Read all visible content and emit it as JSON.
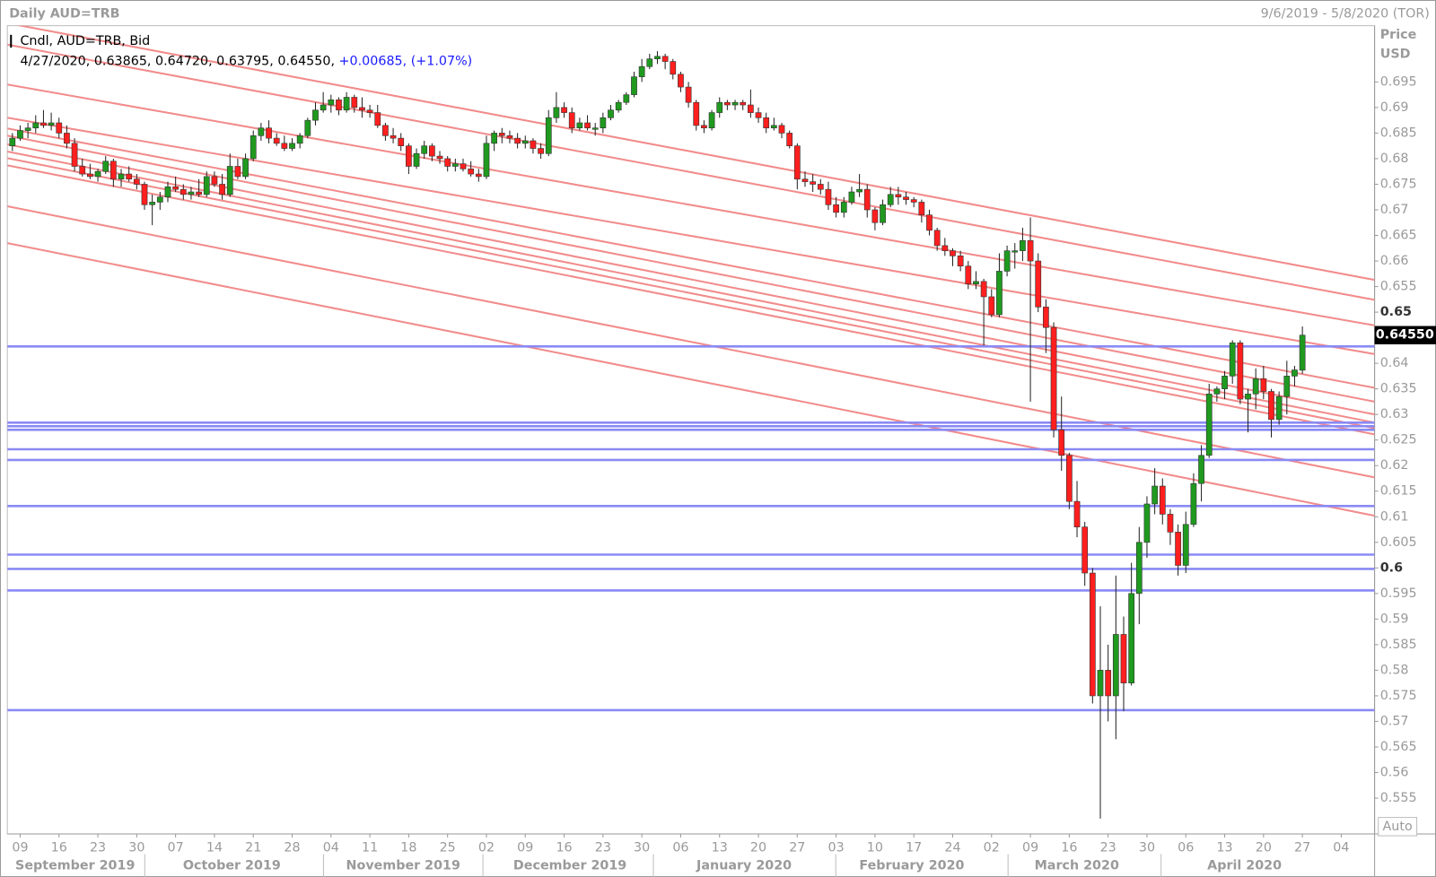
{
  "chart_data": {
    "type": "candlestick",
    "title": "Daily AUD=TRB",
    "range_label": "9/6/2019 - 5/8/2020 (TOR)",
    "axis_title": "Price",
    "axis_unit": "USD",
    "auto_label": "Auto",
    "legend_title": "Cndl, AUD=TRB, Bid",
    "legend_ohlc": "4/27/2020, 0.63865, 0.64720, 0.63795, 0.64550,",
    "legend_change": "+0.00685, (+1.07%)",
    "last_price": {
      "value": 0.6455,
      "label": "0.64550"
    },
    "up_color": "#1f9a1f",
    "down_color": "#ff1f1f",
    "level_color": "#8a8af5",
    "trend_color": "#f28b8b",
    "ylim": [
      0.548,
      0.706
    ],
    "yticks": [
      0.695,
      0.69,
      0.685,
      0.68,
      0.675,
      0.67,
      0.665,
      0.66,
      0.655,
      0.65,
      0.64,
      0.635,
      0.63,
      0.625,
      0.62,
      0.615,
      0.61,
      0.605,
      0.6,
      0.595,
      0.59,
      0.585,
      0.58,
      0.575,
      0.57,
      0.565,
      0.56,
      0.555
    ],
    "xticks": [
      "09",
      "16",
      "23",
      "30",
      "07",
      "14",
      "21",
      "28",
      "04",
      "11",
      "18",
      "25",
      "02",
      "09",
      "16",
      "23",
      "30",
      "06",
      "13",
      "20",
      "27",
      "03",
      "10",
      "17",
      "24",
      "02",
      "09",
      "16",
      "23",
      "30",
      "06",
      "13",
      "20",
      "27",
      "04"
    ],
    "months": [
      "September 2019",
      "October 2019",
      "November 2019",
      "December 2019",
      "January 2020",
      "February 2020",
      "March 2020",
      "April 2020"
    ],
    "levels": [
      0.6433,
      0.6284,
      0.6277,
      0.627,
      0.6232,
      0.6211,
      0.6121,
      0.6026,
      0.5998,
      0.5956,
      0.5722
    ],
    "trend_lines": [
      {
        "start": 0.7065,
        "end": 0.6563
      },
      {
        "start": 0.7023,
        "end": 0.6524
      },
      {
        "start": 0.6945,
        "end": 0.6474
      },
      {
        "start": 0.688,
        "end": 0.6418
      },
      {
        "start": 0.6859,
        "end": 0.6352
      },
      {
        "start": 0.6845,
        "end": 0.6325
      },
      {
        "start": 0.6828,
        "end": 0.63
      },
      {
        "start": 0.6814,
        "end": 0.6284
      },
      {
        "start": 0.6801,
        "end": 0.6273
      },
      {
        "start": 0.6787,
        "end": 0.6261
      },
      {
        "start": 0.6707,
        "end": 0.6177
      },
      {
        "start": 0.6635,
        "end": 0.6102
      }
    ],
    "ohlc": [
      [
        0.6825,
        0.685,
        0.6815,
        0.684
      ],
      [
        0.684,
        0.6865,
        0.6835,
        0.6855
      ],
      [
        0.6855,
        0.687,
        0.684,
        0.686
      ],
      [
        0.686,
        0.6885,
        0.685,
        0.687
      ],
      [
        0.687,
        0.6895,
        0.686,
        0.6865
      ],
      [
        0.6865,
        0.689,
        0.6855,
        0.687
      ],
      [
        0.687,
        0.688,
        0.684,
        0.685
      ],
      [
        0.685,
        0.6865,
        0.682,
        0.683
      ],
      [
        0.683,
        0.684,
        0.6775,
        0.6785
      ],
      [
        0.6785,
        0.68,
        0.6765,
        0.677
      ],
      [
        0.677,
        0.679,
        0.676,
        0.6765
      ],
      [
        0.6765,
        0.678,
        0.6755,
        0.6775
      ],
      [
        0.6775,
        0.6805,
        0.677,
        0.6795
      ],
      [
        0.6795,
        0.68,
        0.6745,
        0.676
      ],
      [
        0.676,
        0.678,
        0.6745,
        0.677
      ],
      [
        0.677,
        0.6785,
        0.6755,
        0.676
      ],
      [
        0.676,
        0.677,
        0.674,
        0.675
      ],
      [
        0.675,
        0.6755,
        0.67,
        0.671
      ],
      [
        0.671,
        0.673,
        0.667,
        0.6715
      ],
      [
        0.6715,
        0.6735,
        0.67,
        0.6725
      ],
      [
        0.6725,
        0.6755,
        0.6715,
        0.6745
      ],
      [
        0.6745,
        0.6765,
        0.6735,
        0.674
      ],
      [
        0.674,
        0.675,
        0.672,
        0.673
      ],
      [
        0.673,
        0.6745,
        0.672,
        0.6735
      ],
      [
        0.6735,
        0.676,
        0.6725,
        0.673
      ],
      [
        0.673,
        0.6775,
        0.6725,
        0.6765
      ],
      [
        0.6765,
        0.6775,
        0.6745,
        0.675
      ],
      [
        0.675,
        0.677,
        0.672,
        0.673
      ],
      [
        0.673,
        0.681,
        0.6725,
        0.6785
      ],
      [
        0.6785,
        0.68,
        0.676,
        0.6765
      ],
      [
        0.6765,
        0.681,
        0.676,
        0.68
      ],
      [
        0.68,
        0.6855,
        0.6795,
        0.6845
      ],
      [
        0.6845,
        0.687,
        0.6835,
        0.686
      ],
      [
        0.686,
        0.6875,
        0.683,
        0.684
      ],
      [
        0.684,
        0.685,
        0.6825,
        0.683
      ],
      [
        0.683,
        0.6845,
        0.6815,
        0.682
      ],
      [
        0.682,
        0.684,
        0.6815,
        0.683
      ],
      [
        0.683,
        0.685,
        0.682,
        0.6845
      ],
      [
        0.6845,
        0.688,
        0.684,
        0.6875
      ],
      [
        0.6875,
        0.691,
        0.6865,
        0.6895
      ],
      [
        0.6895,
        0.693,
        0.689,
        0.6905
      ],
      [
        0.6905,
        0.6925,
        0.689,
        0.6915
      ],
      [
        0.6915,
        0.692,
        0.6885,
        0.6895
      ],
      [
        0.6895,
        0.693,
        0.689,
        0.692
      ],
      [
        0.692,
        0.6925,
        0.689,
        0.69
      ],
      [
        0.69,
        0.692,
        0.688,
        0.6895
      ],
      [
        0.6895,
        0.6905,
        0.688,
        0.689
      ],
      [
        0.689,
        0.6905,
        0.686,
        0.6865
      ],
      [
        0.6865,
        0.687,
        0.6835,
        0.6845
      ],
      [
        0.6845,
        0.686,
        0.683,
        0.684
      ],
      [
        0.684,
        0.685,
        0.6815,
        0.6825
      ],
      [
        0.6825,
        0.683,
        0.677,
        0.6785
      ],
      [
        0.6785,
        0.682,
        0.678,
        0.681
      ],
      [
        0.681,
        0.6835,
        0.68,
        0.6825
      ],
      [
        0.6825,
        0.683,
        0.6795,
        0.6805
      ],
      [
        0.6805,
        0.6815,
        0.679,
        0.68
      ],
      [
        0.68,
        0.6805,
        0.6775,
        0.6785
      ],
      [
        0.6785,
        0.68,
        0.6775,
        0.679
      ],
      [
        0.679,
        0.68,
        0.6775,
        0.678
      ],
      [
        0.678,
        0.6795,
        0.6765,
        0.677
      ],
      [
        0.677,
        0.678,
        0.6755,
        0.6765
      ],
      [
        0.6765,
        0.6845,
        0.676,
        0.683
      ],
      [
        0.683,
        0.6855,
        0.6815,
        0.685
      ],
      [
        0.685,
        0.686,
        0.683,
        0.6845
      ],
      [
        0.6845,
        0.6855,
        0.683,
        0.684
      ],
      [
        0.684,
        0.685,
        0.682,
        0.683
      ],
      [
        0.683,
        0.6845,
        0.682,
        0.6835
      ],
      [
        0.6835,
        0.684,
        0.681,
        0.682
      ],
      [
        0.682,
        0.683,
        0.68,
        0.681
      ],
      [
        0.681,
        0.6895,
        0.6805,
        0.688
      ],
      [
        0.688,
        0.693,
        0.687,
        0.69
      ],
      [
        0.69,
        0.691,
        0.688,
        0.689
      ],
      [
        0.689,
        0.69,
        0.685,
        0.686
      ],
      [
        0.686,
        0.688,
        0.6855,
        0.687
      ],
      [
        0.687,
        0.6885,
        0.6855,
        0.686
      ],
      [
        0.686,
        0.687,
        0.6845,
        0.686
      ],
      [
        0.686,
        0.689,
        0.685,
        0.688
      ],
      [
        0.688,
        0.6905,
        0.6875,
        0.6895
      ],
      [
        0.6895,
        0.6915,
        0.689,
        0.691
      ],
      [
        0.691,
        0.693,
        0.6905,
        0.6925
      ],
      [
        0.6925,
        0.697,
        0.692,
        0.696
      ],
      [
        0.696,
        0.6995,
        0.695,
        0.698
      ],
      [
        0.698,
        0.7005,
        0.6975,
        0.6995
      ],
      [
        0.6995,
        0.701,
        0.6985,
        0.7
      ],
      [
        0.7,
        0.7005,
        0.6975,
        0.699
      ],
      [
        0.699,
        0.6995,
        0.6955,
        0.6965
      ],
      [
        0.6965,
        0.697,
        0.693,
        0.694
      ],
      [
        0.694,
        0.695,
        0.69,
        0.691
      ],
      [
        0.691,
        0.6915,
        0.6855,
        0.6865
      ],
      [
        0.6865,
        0.6875,
        0.685,
        0.686
      ],
      [
        0.686,
        0.6895,
        0.6855,
        0.689
      ],
      [
        0.689,
        0.692,
        0.688,
        0.691
      ],
      [
        0.691,
        0.6915,
        0.6895,
        0.6905
      ],
      [
        0.6905,
        0.6915,
        0.6895,
        0.691
      ],
      [
        0.691,
        0.6915,
        0.6895,
        0.6905
      ],
      [
        0.6905,
        0.6935,
        0.688,
        0.689
      ],
      [
        0.689,
        0.69,
        0.687,
        0.688
      ],
      [
        0.688,
        0.689,
        0.685,
        0.686
      ],
      [
        0.686,
        0.688,
        0.6855,
        0.6865
      ],
      [
        0.6865,
        0.687,
        0.684,
        0.685
      ],
      [
        0.685,
        0.6855,
        0.682,
        0.6825
      ],
      [
        0.6825,
        0.683,
        0.674,
        0.676
      ],
      [
        0.676,
        0.6775,
        0.6745,
        0.6755
      ],
      [
        0.6755,
        0.677,
        0.6735,
        0.675
      ],
      [
        0.675,
        0.676,
        0.673,
        0.674
      ],
      [
        0.674,
        0.6755,
        0.67,
        0.671
      ],
      [
        0.671,
        0.6725,
        0.6685,
        0.6695
      ],
      [
        0.6695,
        0.6725,
        0.6685,
        0.6715
      ],
      [
        0.6715,
        0.6745,
        0.671,
        0.6735
      ],
      [
        0.6735,
        0.677,
        0.6725,
        0.674
      ],
      [
        0.674,
        0.675,
        0.6685,
        0.67
      ],
      [
        0.67,
        0.6705,
        0.666,
        0.6675
      ],
      [
        0.6675,
        0.672,
        0.667,
        0.671
      ],
      [
        0.671,
        0.6745,
        0.6705,
        0.673
      ],
      [
        0.673,
        0.6745,
        0.671,
        0.6725
      ],
      [
        0.6725,
        0.6735,
        0.671,
        0.672
      ],
      [
        0.672,
        0.6725,
        0.6705,
        0.6715
      ],
      [
        0.6715,
        0.672,
        0.6675,
        0.669
      ],
      [
        0.669,
        0.67,
        0.665,
        0.666
      ],
      [
        0.666,
        0.6665,
        0.662,
        0.663
      ],
      [
        0.663,
        0.6645,
        0.661,
        0.662
      ],
      [
        0.662,
        0.6625,
        0.659,
        0.661
      ],
      [
        0.661,
        0.662,
        0.658,
        0.659
      ],
      [
        0.659,
        0.66,
        0.6545,
        0.6555
      ],
      [
        0.6555,
        0.658,
        0.6545,
        0.656
      ],
      [
        0.656,
        0.6565,
        0.6435,
        0.653
      ],
      [
        0.653,
        0.6545,
        0.649,
        0.6495
      ],
      [
        0.6495,
        0.6615,
        0.649,
        0.658
      ],
      [
        0.658,
        0.663,
        0.657,
        0.662
      ],
      [
        0.662,
        0.6635,
        0.6585,
        0.662
      ],
      [
        0.662,
        0.6665,
        0.66,
        0.664
      ],
      [
        0.664,
        0.6685,
        0.6325,
        0.66
      ],
      [
        0.66,
        0.6615,
        0.65,
        0.651
      ],
      [
        0.651,
        0.6525,
        0.642,
        0.647
      ],
      [
        0.647,
        0.648,
        0.6255,
        0.627
      ],
      [
        0.627,
        0.6335,
        0.619,
        0.622
      ],
      [
        0.622,
        0.6225,
        0.6115,
        0.613
      ],
      [
        0.613,
        0.617,
        0.606,
        0.608
      ],
      [
        0.608,
        0.609,
        0.5965,
        0.599
      ],
      [
        0.599,
        0.6,
        0.5735,
        0.575
      ],
      [
        0.575,
        0.5925,
        0.551,
        0.58
      ],
      [
        0.58,
        0.585,
        0.57,
        0.575
      ],
      [
        0.575,
        0.5985,
        0.5665,
        0.587
      ],
      [
        0.587,
        0.5905,
        0.572,
        0.5775
      ],
      [
        0.5775,
        0.601,
        0.577,
        0.595
      ],
      [
        0.595,
        0.608,
        0.589,
        0.605
      ],
      [
        0.605,
        0.614,
        0.602,
        0.6125
      ],
      [
        0.6125,
        0.6195,
        0.6105,
        0.616
      ],
      [
        0.616,
        0.6175,
        0.6085,
        0.6105
      ],
      [
        0.6105,
        0.6115,
        0.6045,
        0.607
      ],
      [
        0.607,
        0.6085,
        0.5985,
        0.6005
      ],
      [
        0.6005,
        0.611,
        0.599,
        0.6085
      ],
      [
        0.6085,
        0.6185,
        0.608,
        0.6165
      ],
      [
        0.6165,
        0.624,
        0.613,
        0.622
      ],
      [
        0.622,
        0.636,
        0.6215,
        0.634
      ],
      [
        0.634,
        0.6355,
        0.6325,
        0.635
      ],
      [
        0.635,
        0.6385,
        0.633,
        0.6375
      ],
      [
        0.6375,
        0.6445,
        0.636,
        0.644
      ],
      [
        0.644,
        0.6445,
        0.632,
        0.633
      ],
      [
        0.633,
        0.635,
        0.6265,
        0.634
      ],
      [
        0.634,
        0.639,
        0.631,
        0.637
      ],
      [
        0.637,
        0.6395,
        0.633,
        0.6345
      ],
      [
        0.6345,
        0.635,
        0.6255,
        0.629
      ],
      [
        0.629,
        0.6345,
        0.628,
        0.6335
      ],
      [
        0.6335,
        0.6405,
        0.63,
        0.6375
      ],
      [
        0.6375,
        0.6395,
        0.6355,
        0.6387
      ],
      [
        0.63865,
        0.6472,
        0.63795,
        0.6455
      ]
    ]
  }
}
